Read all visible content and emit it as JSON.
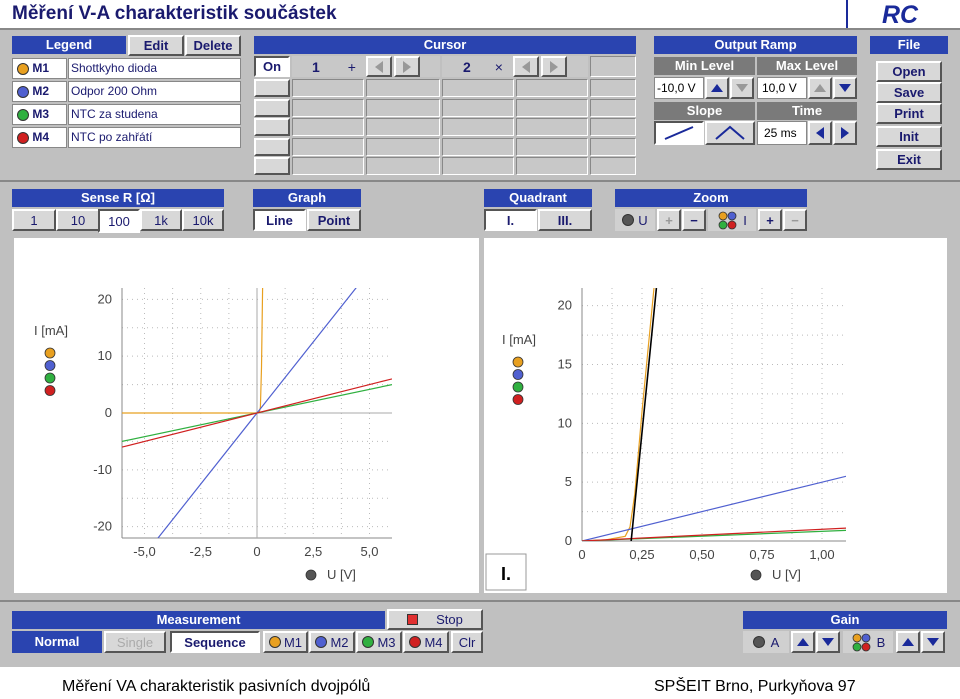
{
  "title": "Měření V-A charakteristik součástek",
  "logo": "RC",
  "legend": {
    "header": "Legend",
    "edit": "Edit",
    "delete": "Delete",
    "items": [
      {
        "id": "M1",
        "label": "Shottkyho dioda",
        "color": "#e8a020"
      },
      {
        "id": "M2",
        "label": "Odpor 200 Ohm",
        "color": "#5060d0"
      },
      {
        "id": "M3",
        "label": "NTC za studena",
        "color": "#30b040"
      },
      {
        "id": "M4",
        "label": "NTC po zahřátí",
        "color": "#d02020"
      }
    ]
  },
  "cursor": {
    "header": "Cursor",
    "on": "On",
    "c1": "1",
    "c1_symbol": "+",
    "c2": "2",
    "c2_symbol": "×"
  },
  "output_ramp": {
    "header": "Output Ramp",
    "min_label": "Min Level",
    "max_label": "Max Level",
    "min_value": "-10,0 V",
    "max_value": "10,0 V",
    "slope_label": "Slope",
    "time_label": "Time",
    "time_value": "25 ms"
  },
  "file": {
    "header": "File",
    "open": "Open",
    "save": "Save",
    "print": "Print",
    "init": "Init",
    "exit": "Exit"
  },
  "sense": {
    "header": "Sense R  [Ω]",
    "options": [
      "1",
      "10",
      "100",
      "1k",
      "10k"
    ],
    "selected": "100"
  },
  "graph": {
    "header": "Graph",
    "line": "Line",
    "point": "Point"
  },
  "quadrant": {
    "header": "Quadrant",
    "q1": "I.",
    "q3": "III."
  },
  "zoom": {
    "header": "Zoom",
    "u_label": "U",
    "i_label": "I",
    "plus": "+",
    "minus": "−"
  },
  "chart_data": [
    {
      "type": "line",
      "title": "",
      "xlabel": "U [V]",
      "ylabel": "I [mA]",
      "xlim": [
        -6,
        6
      ],
      "ylim": [
        -22,
        22
      ],
      "x_ticks": [
        "-5,0",
        "-2,5",
        "0",
        "2,5",
        "5,0"
      ],
      "y_ticks": [
        "20",
        "10",
        "0",
        "-10",
        "-20"
      ],
      "grid": true,
      "series": [
        {
          "color": "#e8a020",
          "x": [
            -6,
            0,
            0.1,
            0.15,
            0.2,
            0.25
          ],
          "y": [
            0,
            0,
            0.1,
            1,
            8,
            22
          ]
        },
        {
          "color": "#5060d0",
          "x": [
            -6,
            6
          ],
          "y": [
            -30,
            30
          ]
        },
        {
          "color": "#30b040",
          "x": [
            -6,
            6
          ],
          "y": [
            -5.0,
            5.0
          ]
        },
        {
          "color": "#d02020",
          "x": [
            -6,
            6
          ],
          "y": [
            -6.0,
            6.0
          ]
        }
      ]
    },
    {
      "type": "line",
      "title": "",
      "quadrant_label": "I.",
      "xlabel": "U [V]",
      "ylabel": "I [mA]",
      "xlim": [
        0,
        1.1
      ],
      "ylim": [
        0,
        21.5
      ],
      "x_ticks": [
        "0",
        "0,25",
        "0,50",
        "0,75",
        "1,00"
      ],
      "y_ticks": [
        "20",
        "15",
        "10",
        "5",
        "0"
      ],
      "grid": true,
      "series": [
        {
          "color": "#e8a020",
          "x": [
            0,
            0.1,
            0.18,
            0.2,
            0.22,
            0.25,
            0.3
          ],
          "y": [
            0,
            0.1,
            0.4,
            1.2,
            4,
            11,
            21.5
          ]
        },
        {
          "color": "#5060d0",
          "x": [
            0,
            1.1
          ],
          "y": [
            0,
            5.5
          ]
        },
        {
          "color": "#30b040",
          "x": [
            0,
            1.1
          ],
          "y": [
            0,
            0.9
          ]
        },
        {
          "color": "#d02020",
          "x": [
            0,
            1.1
          ],
          "y": [
            0,
            1.1
          ]
        },
        {
          "color": "#000000",
          "x": [
            0.2,
            0.31
          ],
          "y": [
            -1,
            21.5
          ]
        }
      ]
    }
  ],
  "measurement": {
    "header": "Measurement",
    "stop": "Stop",
    "normal": "Normal",
    "single": "Single",
    "sequence": "Sequence",
    "m1": "M1",
    "m2": "M2",
    "m3": "M3",
    "m4": "M4",
    "clr": "Clr"
  },
  "gain": {
    "header": "Gain",
    "a": "A",
    "b": "B"
  },
  "footer": {
    "left": "Měření  VA charakteristik pasivních dvojpólů",
    "right": "SPŠEIT Brno, Purkyňova 97"
  }
}
